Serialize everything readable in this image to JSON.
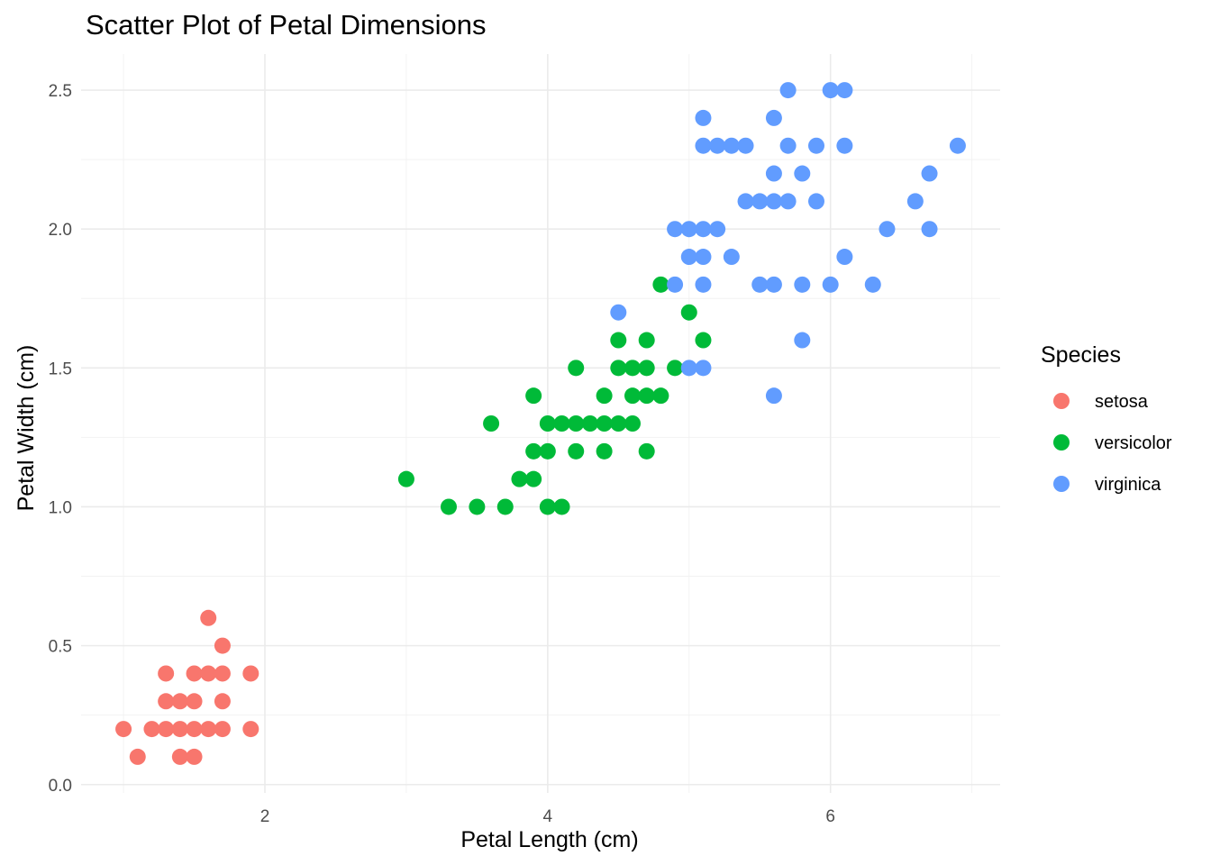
{
  "chart_data": {
    "type": "scatter",
    "title": "Scatter Plot of Petal Dimensions",
    "xlabel": "Petal Length (cm)",
    "ylabel": "Petal Width (cm)",
    "xlim": [
      0.7,
      7.2
    ],
    "ylim": [
      -0.03,
      2.63
    ],
    "x_ticks": [
      2,
      4,
      6
    ],
    "y_ticks": [
      "0.0",
      "0.5",
      "1.0",
      "1.5",
      "2.0",
      "2.5"
    ],
    "grid": true,
    "legend": {
      "title": "Species",
      "position": "right"
    },
    "series": [
      {
        "name": "setosa",
        "color": "#F8766D",
        "points": [
          [
            1.0,
            0.2
          ],
          [
            1.1,
            0.1
          ],
          [
            1.2,
            0.2
          ],
          [
            1.3,
            0.2
          ],
          [
            1.3,
            0.3
          ],
          [
            1.3,
            0.4
          ],
          [
            1.4,
            0.1
          ],
          [
            1.4,
            0.2
          ],
          [
            1.4,
            0.3
          ],
          [
            1.5,
            0.1
          ],
          [
            1.5,
            0.2
          ],
          [
            1.5,
            0.3
          ],
          [
            1.5,
            0.4
          ],
          [
            1.6,
            0.2
          ],
          [
            1.6,
            0.4
          ],
          [
            1.6,
            0.6
          ],
          [
            1.7,
            0.2
          ],
          [
            1.7,
            0.3
          ],
          [
            1.7,
            0.4
          ],
          [
            1.7,
            0.5
          ],
          [
            1.9,
            0.2
          ],
          [
            1.9,
            0.4
          ]
        ]
      },
      {
        "name": "versicolor",
        "color": "#00BA38",
        "points": [
          [
            3.0,
            1.1
          ],
          [
            3.3,
            1.0
          ],
          [
            3.5,
            1.0
          ],
          [
            3.6,
            1.3
          ],
          [
            3.7,
            1.0
          ],
          [
            3.8,
            1.1
          ],
          [
            3.9,
            1.1
          ],
          [
            3.9,
            1.2
          ],
          [
            3.9,
            1.4
          ],
          [
            4.0,
            1.0
          ],
          [
            4.0,
            1.2
          ],
          [
            4.0,
            1.3
          ],
          [
            4.1,
            1.0
          ],
          [
            4.1,
            1.3
          ],
          [
            4.2,
            1.2
          ],
          [
            4.2,
            1.3
          ],
          [
            4.2,
            1.5
          ],
          [
            4.3,
            1.3
          ],
          [
            4.4,
            1.2
          ],
          [
            4.4,
            1.3
          ],
          [
            4.4,
            1.4
          ],
          [
            4.5,
            1.3
          ],
          [
            4.5,
            1.5
          ],
          [
            4.5,
            1.6
          ],
          [
            4.6,
            1.3
          ],
          [
            4.6,
            1.4
          ],
          [
            4.6,
            1.5
          ],
          [
            4.7,
            1.2
          ],
          [
            4.7,
            1.4
          ],
          [
            4.7,
            1.5
          ],
          [
            4.7,
            1.6
          ],
          [
            4.8,
            1.4
          ],
          [
            4.8,
            1.8
          ],
          [
            4.9,
            1.5
          ],
          [
            5.0,
            1.7
          ],
          [
            5.1,
            1.6
          ]
        ]
      },
      {
        "name": "virginica",
        "color": "#619CFF",
        "points": [
          [
            4.5,
            1.7
          ],
          [
            4.9,
            1.8
          ],
          [
            4.9,
            2.0
          ],
          [
            5.0,
            1.5
          ],
          [
            5.0,
            1.9
          ],
          [
            5.0,
            2.0
          ],
          [
            5.1,
            1.5
          ],
          [
            5.1,
            1.8
          ],
          [
            5.1,
            1.9
          ],
          [
            5.1,
            2.0
          ],
          [
            5.1,
            2.3
          ],
          [
            5.1,
            2.4
          ],
          [
            5.2,
            2.0
          ],
          [
            5.2,
            2.3
          ],
          [
            5.3,
            1.9
          ],
          [
            5.3,
            2.3
          ],
          [
            5.4,
            2.1
          ],
          [
            5.4,
            2.3
          ],
          [
            5.5,
            1.8
          ],
          [
            5.5,
            2.1
          ],
          [
            5.6,
            1.4
          ],
          [
            5.6,
            1.8
          ],
          [
            5.6,
            2.1
          ],
          [
            5.6,
            2.2
          ],
          [
            5.6,
            2.4
          ],
          [
            5.7,
            2.1
          ],
          [
            5.7,
            2.3
          ],
          [
            5.7,
            2.5
          ],
          [
            5.8,
            1.6
          ],
          [
            5.8,
            1.8
          ],
          [
            5.8,
            2.2
          ],
          [
            5.9,
            2.1
          ],
          [
            5.9,
            2.3
          ],
          [
            6.0,
            1.8
          ],
          [
            6.0,
            2.5
          ],
          [
            6.1,
            1.9
          ],
          [
            6.1,
            2.3
          ],
          [
            6.1,
            2.5
          ],
          [
            6.3,
            1.8
          ],
          [
            6.4,
            2.0
          ],
          [
            6.6,
            2.1
          ],
          [
            6.7,
            2.0
          ],
          [
            6.7,
            2.2
          ],
          [
            6.9,
            2.3
          ]
        ]
      }
    ]
  }
}
